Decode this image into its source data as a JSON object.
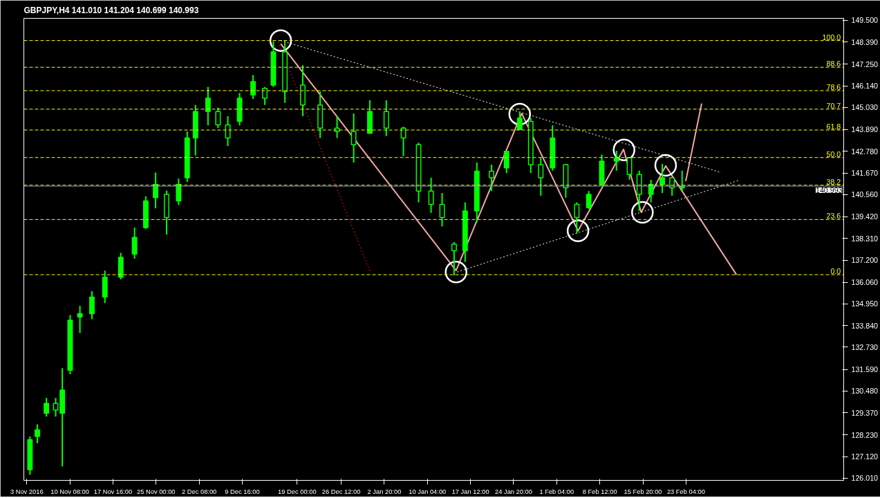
{
  "chart_data": {
    "type": "candlestick",
    "title": "GBPJPY,H4  141.010 141.204 140.699 140.993",
    "color": "#00ff00",
    "x": [
      "2016-11-03T13:00",
      "2016-11-04T19:00",
      "2016-11-06T08:00",
      "2016-11-07T22:00",
      "2016-11-09T01:00",
      "2016-11-10T09:00",
      "2016-11-12T01:00",
      "2016-11-14T02:00",
      "2016-11-16T07:00",
      "2016-11-19T00:00",
      "2016-11-21T08:00",
      "2016-11-23T06:00",
      "2016-11-24T22:00",
      "2016-11-26T19:00",
      "2016-11-28T20:00",
      "2016-11-30T07:00",
      "2016-12-01T17:00",
      "2016-12-03T20:00",
      "2016-12-05T13:00",
      "2016-12-07T05:00",
      "2016-12-09T05:00",
      "2016-12-11T12:00",
      "2016-12-13T12:00",
      "2016-12-14T23:00",
      "2016-12-16T22:00",
      "2016-12-19T23:00",
      "2016-12-22T22:00",
      "2016-12-25T19:00",
      "2016-12-28T15:00",
      "2016-12-31T09:00",
      "2017-01-03T04:00",
      "2017-01-06T02:00",
      "2017-01-08T16:00",
      "2017-01-10T19:00",
      "2017-01-12T16:00",
      "2017-01-14T17:00",
      "2017-01-16T14:00",
      "2017-01-18T14:00",
      "2017-01-21T02:00",
      "2017-01-23T15:00",
      "2017-01-25T21:00",
      "2017-01-27T18:00",
      "2017-01-29T11:00",
      "2017-01-31T11:00",
      "2017-02-02T17:00",
      "2017-02-04T14:00",
      "2017-02-06T15:00",
      "2017-02-08T20:00",
      "2017-02-11T08:00",
      "2017-02-13T13:00",
      "2017-02-15T05:00",
      "2017-02-17T05:00",
      "2017-02-19T03:00",
      "2017-02-20T19:00",
      "2017-02-22T12:00"
    ],
    "ohlc": [
      [
        126.45,
        128.15,
        126.18,
        127.98
      ],
      [
        128.15,
        128.77,
        127.81,
        128.49
      ],
      [
        129.34,
        130.13,
        129.17,
        129.85
      ],
      [
        129.85,
        130.13,
        129.17,
        129.51
      ],
      [
        129.34,
        131.66,
        126.62,
        130.53
      ],
      [
        131.55,
        134.38,
        131.35,
        134.11
      ],
      [
        134.28,
        134.85,
        133.46,
        134.45
      ],
      [
        134.45,
        135.6,
        134.17,
        135.3
      ],
      [
        135.3,
        136.66,
        134.99,
        136.32
      ],
      [
        136.32,
        137.57,
        136.21,
        137.34
      ],
      [
        137.51,
        138.87,
        137.27,
        138.36
      ],
      [
        138.87,
        140.47,
        138.8,
        140.23
      ],
      [
        140.4,
        141.69,
        139.85,
        141.08
      ],
      [
        140.57,
        140.77,
        138.5,
        139.38
      ],
      [
        140.23,
        141.38,
        140.02,
        141.08
      ],
      [
        141.42,
        143.8,
        141.21,
        143.46
      ],
      [
        143.46,
        145.16,
        142.57,
        144.82
      ],
      [
        144.82,
        146.08,
        144.11,
        145.5
      ],
      [
        144.82,
        145.02,
        143.97,
        144.14
      ],
      [
        144.14,
        144.58,
        143.05,
        143.46
      ],
      [
        144.31,
        145.77,
        144.11,
        145.5
      ],
      [
        145.67,
        146.69,
        145.47,
        146.35
      ],
      [
        146.01,
        146.08,
        145.16,
        145.5
      ],
      [
        146.18,
        148.42,
        146.08,
        147.88
      ],
      [
        147.88,
        148.46,
        145.26,
        145.84
      ],
      [
        146.18,
        147.2,
        144.58,
        145.16
      ],
      [
        145.16,
        145.84,
        143.46,
        143.97
      ],
      [
        143.97,
        144.58,
        143.46,
        143.8
      ],
      [
        143.8,
        144.72,
        142.2,
        143.12
      ],
      [
        143.7,
        145.4,
        143.7,
        144.82
      ],
      [
        144.82,
        145.4,
        143.56,
        143.97
      ],
      [
        143.97,
        144.04,
        142.54,
        143.46
      ],
      [
        143.12,
        143.22,
        140.16,
        140.74
      ],
      [
        140.74,
        141.42,
        139.62,
        140.06
      ],
      [
        140.06,
        140.64,
        138.93,
        139.38
      ],
      [
        138.02,
        138.12,
        136.42,
        137.68
      ],
      [
        137.68,
        140.16,
        137.1,
        139.72
      ],
      [
        139.72,
        142.2,
        139.14,
        141.76
      ],
      [
        141.76,
        142.1,
        140.74,
        141.42
      ],
      [
        141.93,
        142.78,
        141.66,
        142.78
      ],
      [
        143.9,
        144.82,
        143.9,
        144.48
      ],
      [
        144.31,
        144.48,
        141.66,
        142.1
      ],
      [
        142.1,
        142.44,
        140.5,
        141.42
      ],
      [
        141.93,
        144.11,
        141.79,
        143.46
      ],
      [
        142.1,
        142.13,
        140.4,
        140.91
      ],
      [
        140.06,
        140.16,
        138.56,
        139.38
      ],
      [
        139.89,
        140.74,
        139.82,
        140.57
      ],
      [
        141.08,
        142.61,
        141.08,
        142.27
      ],
      [
        142.27,
        142.81,
        141.79,
        142.44
      ],
      [
        142.44,
        142.47,
        141.32,
        141.59
      ],
      [
        141.59,
        141.79,
        139.72,
        140.57
      ],
      [
        140.57,
        141.32,
        140.16,
        141.08
      ],
      [
        141.08,
        142.13,
        140.64,
        141.42
      ],
      [
        141.42,
        141.45,
        140.5,
        140.91
      ],
      [
        140.91,
        141.79,
        140.74,
        140.99
      ]
    ],
    "series": [
      {
        "type": "line",
        "color": "#f4a7a7",
        "line_style": "solid",
        "x": [
          "2016-12-16T05:00",
          "2017-01-15T01:00",
          "2017-01-26T05:00",
          "2017-02-04T19:00",
          "2017-02-12T13:00",
          "2017-02-15T13:00",
          "2017-02-19T17:00",
          "2017-03-03T18:00"
        ],
        "values": [
          148.29,
          136.66,
          144.72,
          138.7,
          142.88,
          139.65,
          142.03,
          136.45
        ]
      },
      {
        "type": "line",
        "color": "#f4a7a7",
        "line_style": "solid",
        "x": [
          "2017-02-23T03:00",
          "2017-02-25T20:00"
        ],
        "values": [
          141.25,
          145.23
        ]
      },
      {
        "type": "line",
        "color": "#ffffff",
        "line_style": "dotted",
        "x": [
          "2016-12-16T05:00",
          "2017-03-01T04:00"
        ],
        "values": [
          148.46,
          141.69
        ]
      },
      {
        "type": "line",
        "color": "#ffffff",
        "line_style": "dotted",
        "x": [
          "2017-01-15T06:00",
          "2017-03-04T02:00"
        ],
        "values": [
          136.59,
          141.28
        ]
      },
      {
        "type": "line",
        "color": "#ff0000",
        "line_style": "dotted",
        "x": [
          "2016-12-15T18:00",
          "2016-12-31T12:00"
        ],
        "values": [
          148.39,
          136.55
        ]
      },
      {
        "type": "scatter",
        "color": "#ffffff",
        "marker": "circle",
        "x": [
          "2016-12-16T05:00",
          "2017-01-15T01:00",
          "2017-01-25T21:00",
          "2017-02-04T19:00",
          "2017-02-12T15:00",
          "2017-02-15T18:00",
          "2017-02-19T17:00"
        ],
        "values": [
          148.46,
          136.59,
          144.69,
          138.7,
          142.85,
          139.65,
          142.06
        ]
      }
    ],
    "ref_lines": [
      {
        "axis": "y",
        "value": 148.46,
        "color": "#ffff00",
        "line_style": "dashed"
      },
      {
        "axis": "y",
        "value": 147.09,
        "color": "#ffff00",
        "line_style": "dashed"
      },
      {
        "axis": "y",
        "value": 145.89,
        "color": "#ffff00",
        "line_style": "dashed"
      },
      {
        "axis": "y",
        "value": 144.94,
        "color": "#ffff00",
        "line_style": "dashed"
      },
      {
        "axis": "y",
        "value": 143.87,
        "color": "#ffff00",
        "line_style": "dashed"
      },
      {
        "axis": "y",
        "value": 142.46,
        "color": "#ffff00",
        "line_style": "dashed"
      },
      {
        "axis": "y",
        "value": 141.04,
        "color": "#ffff00",
        "line_style": "dashed"
      },
      {
        "axis": "y",
        "value": 139.28,
        "color": "#ffff00",
        "line_style": "dashed"
      },
      {
        "axis": "y",
        "value": 136.45,
        "color": "#ffff00",
        "line_style": "dashed"
      },
      {
        "axis": "y",
        "value": 140.993,
        "label": "140.993",
        "color": "#8597a8",
        "line_style": "solid"
      }
    ],
    "annotations": [
      {
        "text": "100.0",
        "x": "2017-03-21T12:00",
        "y": 148.46
      },
      {
        "text": "88.6",
        "x": "2017-03-21T12:00",
        "y": 147.09
      },
      {
        "text": "78.6",
        "x": "2017-03-21T12:00",
        "y": 145.89
      },
      {
        "text": "70.7",
        "x": "2017-03-21T12:00",
        "y": 144.94
      },
      {
        "text": "61.8",
        "x": "2017-03-21T12:00",
        "y": 143.87
      },
      {
        "text": "50.0",
        "x": "2017-03-21T12:00",
        "y": 142.46
      },
      {
        "text": "38.2",
        "x": "2017-03-21T12:00",
        "y": 141.04
      },
      {
        "text": "23.6",
        "x": "2017-03-21T12:00",
        "y": 139.28
      },
      {
        "text": "0.0",
        "x": "2017-03-21T12:00",
        "y": 136.45
      }
    ],
    "xlim": [
      "2016-11-02T12:00",
      "2017-03-22T00:00"
    ],
    "xticks": [
      {
        "value": "2016-11-03T00:00",
        "label": "3 Nov 2016"
      },
      {
        "value": "2016-11-10T08:00",
        "label": "10 Nov 08:00"
      },
      {
        "value": "2016-11-17T16:00",
        "label": "17 Nov 16:00"
      },
      {
        "value": "2016-11-25T00:00",
        "label": "25 Nov 00:00"
      },
      {
        "value": "2016-12-02T08:00",
        "label": "2 Dec 08:00"
      },
      {
        "value": "2016-12-09T16:00",
        "label": "9 Dec 16:00"
      },
      {
        "value": "2016-12-19T00:00",
        "label": "19 Dec 00:00"
      },
      {
        "value": "2016-12-26T12:00",
        "label": "26 Dec 12:00"
      },
      {
        "value": "2017-01-02T20:00",
        "label": "2 Jan 20:00"
      },
      {
        "value": "2017-01-10T04:00",
        "label": "10 Jan 04:00"
      },
      {
        "value": "2017-01-17T12:00",
        "label": "17 Jan 12:00"
      },
      {
        "value": "2017-01-24T20:00",
        "label": "24 Jan 20:00"
      },
      {
        "value": "2017-02-01T04:00",
        "label": "1 Feb 04:00"
      },
      {
        "value": "2017-02-08T12:00",
        "label": "8 Feb 12:00"
      },
      {
        "value": "2017-02-15T20:00",
        "label": "15 Feb 20:00"
      },
      {
        "value": "2017-02-23T04:00",
        "label": "23 Feb 04:00"
      }
    ],
    "ylim": [
      125.9,
      149.6
    ],
    "yticks": [
      {
        "value": 126.01,
        "label": "126.010"
      },
      {
        "value": 127.12,
        "label": "127.120"
      },
      {
        "value": 128.23,
        "label": "128.230"
      },
      {
        "value": 129.37,
        "label": "129.370"
      },
      {
        "value": 130.48,
        "label": "130.480"
      },
      {
        "value": 131.59,
        "label": "131.590"
      },
      {
        "value": 132.73,
        "label": "132.730"
      },
      {
        "value": 133.84,
        "label": "133.840"
      },
      {
        "value": 134.95,
        "label": "134.950"
      },
      {
        "value": 136.06,
        "label": "136.060"
      },
      {
        "value": 137.2,
        "label": "137.200"
      },
      {
        "value": 138.31,
        "label": "138.310"
      },
      {
        "value": 139.42,
        "label": "139.420"
      },
      {
        "value": 140.56,
        "label": "140.560"
      },
      {
        "value": 141.67,
        "label": "141.670"
      },
      {
        "value": 142.78,
        "label": "142.780"
      },
      {
        "value": 143.89,
        "label": "143.890"
      },
      {
        "value": 145.03,
        "label": "145.030"
      },
      {
        "value": 146.14,
        "label": "146.140"
      },
      {
        "value": 147.25,
        "label": "147.250"
      },
      {
        "value": 148.39,
        "label": "148.390"
      },
      {
        "value": 149.5,
        "label": "149.500"
      }
    ]
  }
}
